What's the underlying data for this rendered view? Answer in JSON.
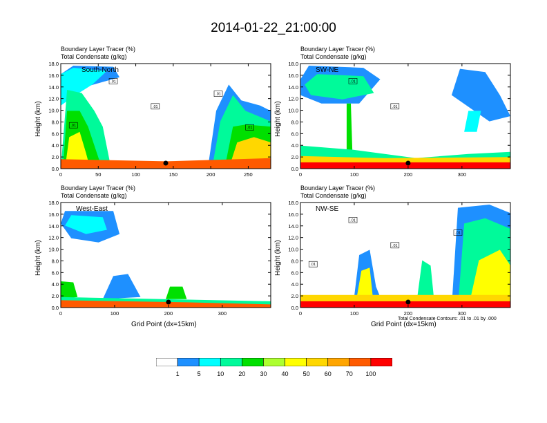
{
  "title": "2014-01-22_21:00:00",
  "chart_data": [
    {
      "type": "heatmap",
      "panel": "top-left",
      "title_lines": [
        "Boundary Layer Tracer    (%)",
        "Total Condensate    (g/kg)"
      ],
      "annotation": "South-North",
      "ylabel": "Height (km)",
      "xlabel": "",
      "xlim": [
        0,
        280
      ],
      "ylim": [
        0,
        18
      ],
      "xticks": [
        "0",
        "50",
        "100",
        "150",
        "200",
        "250"
      ],
      "yticks": [
        "0.0",
        "2.0",
        "4.0",
        "6.0",
        "8.0",
        "10.0",
        "12.0",
        "14.0",
        "16.0",
        "18.0"
      ],
      "contour_labels": [
        ".01",
        ".01",
        ".01",
        ".01",
        ".01"
      ],
      "marker_x": 140
    },
    {
      "type": "heatmap",
      "panel": "top-right",
      "title_lines": [
        "Boundary Layer Tracer    (%)",
        "Total Condensate    (g/kg)"
      ],
      "annotation": "SW-NE",
      "ylabel": "Height (km)",
      "xlabel": "",
      "xlim": [
        0,
        390
      ],
      "ylim": [
        0,
        18
      ],
      "xticks": [
        "0",
        "100",
        "200",
        "300"
      ],
      "yticks": [
        "0.0",
        "2.0",
        "4.0",
        "6.0",
        "8.0",
        "10.0",
        "12.0",
        "14.0",
        "16.0",
        "18.0"
      ],
      "contour_labels": [
        ".01",
        ".01"
      ],
      "marker_x": 200
    },
    {
      "type": "heatmap",
      "panel": "bottom-left",
      "title_lines": [
        "Boundary Layer Tracer    (%)",
        "Total Condensate    (g/kg)"
      ],
      "annotation": "West-East",
      "ylabel": "Height (km)",
      "xlabel": "Grid Point (dx=15km)",
      "xlim": [
        0,
        390
      ],
      "ylim": [
        0,
        18
      ],
      "xticks": [
        "0",
        "100",
        "200",
        "300"
      ],
      "yticks": [
        "0.0",
        "2.0",
        "4.0",
        "6.0",
        "8.0",
        "10.0",
        "12.0",
        "14.0",
        "16.0",
        "18.0"
      ],
      "contour_labels": [],
      "marker_x": 200
    },
    {
      "type": "heatmap",
      "panel": "bottom-right",
      "title_lines": [
        "Boundary Layer Tracer    (%)",
        "Total Condensate    (g/kg)"
      ],
      "annotation": "NW-SE",
      "ylabel": "Height (km)",
      "xlabel": "Grid Point (dx=15km)",
      "xlim": [
        0,
        390
      ],
      "ylim": [
        0,
        18
      ],
      "xticks": [
        "0",
        "100",
        "200",
        "300"
      ],
      "yticks": [
        "0.0",
        "2.0",
        "4.0",
        "6.0",
        "8.0",
        "10.0",
        "12.0",
        "14.0",
        "16.0",
        "18.0"
      ],
      "contour_labels": [
        ".01",
        ".01",
        ".01",
        ".01"
      ],
      "marker_x": 200,
      "note": "Total Condensate Contours: .01 to .01 by .000"
    }
  ],
  "colorbar": {
    "colors": [
      "#ffffff",
      "#1e90ff",
      "#00ffff",
      "#00fa9a",
      "#00e000",
      "#adff2f",
      "#ffff00",
      "#ffd700",
      "#ffa500",
      "#ff5a00",
      "#ff0000"
    ],
    "labels": [
      "1",
      "5",
      "10",
      "20",
      "30",
      "40",
      "50",
      "60",
      "70",
      "100"
    ]
  }
}
